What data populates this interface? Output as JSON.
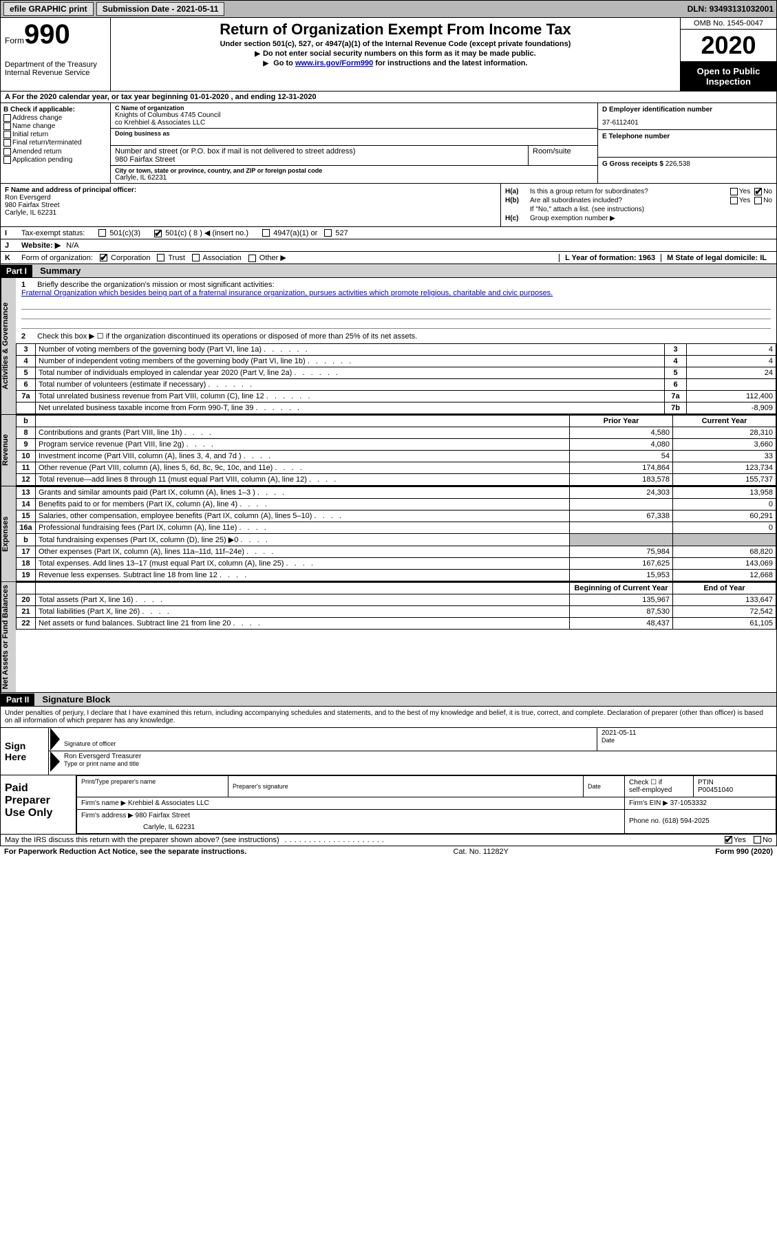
{
  "topbar": {
    "efile": "efile GRAPHIC print",
    "sub_label": "Submission Date - ",
    "sub_date": "2021-05-11",
    "dln_label": "DLN: ",
    "dln": "93493131032001"
  },
  "header": {
    "form_word": "Form",
    "form_num": "990",
    "dept1": "Department of the Treasury",
    "dept2": "Internal Revenue Service",
    "title": "Return of Organization Exempt From Income Tax",
    "sub1": "Under section 501(c), 527, or 4947(a)(1) of the Internal Revenue Code (except private foundations)",
    "sub2": "Do not enter social security numbers on this form as it may be made public.",
    "sub3_pre": "Go to ",
    "sub3_link": "www.irs.gov/Form990",
    "sub3_post": " for instructions and the latest information.",
    "omb": "OMB No. 1545-0047",
    "year": "2020",
    "inspect1": "Open to Public",
    "inspect2": "Inspection"
  },
  "lineA": "A For the 2020 calendar year, or tax year beginning 01-01-2020    , and ending 12-31-2020",
  "colB": {
    "header": "B Check if applicable:",
    "items": [
      "Address change",
      "Name change",
      "Initial return",
      "Final return/terminated",
      "Amended return",
      "Application pending"
    ]
  },
  "colC": {
    "name_lbl": "C Name of organization",
    "name1": "Knights of Columbus 4745 Council",
    "name2": "co Krehbiel & Associates LLC",
    "dba_lbl": "Doing business as",
    "addr_lbl": "Number and street (or P.O. box if mail is not delivered to street address)",
    "room_lbl": "Room/suite",
    "addr": "980 Fairfax Street",
    "city_lbl": "City or town, state or province, country, and ZIP or foreign postal code",
    "city": "Carlyle, IL  62231"
  },
  "colD": {
    "ein_lbl": "D Employer identification number",
    "ein": "37-6112401",
    "tel_lbl": "E Telephone number",
    "gross_lbl": "G Gross receipts $ ",
    "gross": "226,538"
  },
  "f": {
    "lbl": "F  Name and address of principal officer:",
    "name": "Ron Eversgerd",
    "addr": "980 Fairfax Street",
    "city": "Carlyle, IL  62231"
  },
  "h": {
    "a_lbl": "H(a)",
    "a_text": "Is this a group return for subordinates?",
    "b_lbl": "H(b)",
    "b_text": "Are all subordinates included?",
    "b_note": "If \"No,\" attach a list. (see instructions)",
    "c_lbl": "H(c)",
    "c_text": "Group exemption number ▶"
  },
  "rowI": {
    "lbl": "I",
    "text": "Tax-exempt status:",
    "o1": "501(c)(3)",
    "o2": "501(c) ( 8 ) ◀ (insert no.)",
    "o3": "4947(a)(1) or",
    "o4": "527"
  },
  "rowJ": {
    "lbl": "J",
    "text": "Website: ▶",
    "val": "N/A"
  },
  "rowK": {
    "lbl": "K",
    "text": "Form of organization:",
    "o1": "Corporation",
    "o2": "Trust",
    "o3": "Association",
    "o4": "Other ▶"
  },
  "rowLM": {
    "l": "L Year of formation: 1963",
    "m": "M State of legal domicile: IL"
  },
  "part1": {
    "hdr": "Part I",
    "title": "Summary"
  },
  "summary": {
    "l1_lbl": "1",
    "l1": "Briefly describe the organization's mission or most significant activities:",
    "l1_text": "Fraternal Organization which besides being part of a fraternal insurance organization, pursues activities which promote religious, charitable and civic purposes.",
    "l2_lbl": "2",
    "l2": "Check this box ▶ ☐  if the organization discontinued its operations or disposed of more than 25% of its net assets."
  },
  "gov_rows": [
    {
      "n": "3",
      "desc": "Number of voting members of the governing body (Part VI, line 1a)",
      "box": "3",
      "val": "4"
    },
    {
      "n": "4",
      "desc": "Number of independent voting members of the governing body (Part VI, line 1b)",
      "box": "4",
      "val": "4"
    },
    {
      "n": "5",
      "desc": "Total number of individuals employed in calendar year 2020 (Part V, line 2a)",
      "box": "5",
      "val": "24"
    },
    {
      "n": "6",
      "desc": "Total number of volunteers (estimate if necessary)",
      "box": "6",
      "val": ""
    },
    {
      "n": "7a",
      "desc": "Total unrelated business revenue from Part VIII, column (C), line 12",
      "box": "7a",
      "val": "112,400"
    },
    {
      "n": "",
      "desc": "Net unrelated business taxable income from Form 990-T, line 39",
      "box": "7b",
      "val": "-8,909"
    }
  ],
  "col_hdrs": {
    "b_hdr": "b",
    "prior": "Prior Year",
    "current": "Current Year"
  },
  "rev_rows": [
    {
      "n": "8",
      "desc": "Contributions and grants (Part VIII, line 1h)",
      "py": "4,580",
      "cy": "28,310"
    },
    {
      "n": "9",
      "desc": "Program service revenue (Part VIII, line 2g)",
      "py": "4,080",
      "cy": "3,660"
    },
    {
      "n": "10",
      "desc": "Investment income (Part VIII, column (A), lines 3, 4, and 7d )",
      "py": "54",
      "cy": "33"
    },
    {
      "n": "11",
      "desc": "Other revenue (Part VIII, column (A), lines 5, 6d, 8c, 9c, 10c, and 11e)",
      "py": "174,864",
      "cy": "123,734"
    },
    {
      "n": "12",
      "desc": "Total revenue—add lines 8 through 11 (must equal Part VIII, column (A), line 12)",
      "py": "183,578",
      "cy": "155,737"
    }
  ],
  "exp_rows": [
    {
      "n": "13",
      "desc": "Grants and similar amounts paid (Part IX, column (A), lines 1–3 )",
      "py": "24,303",
      "cy": "13,958"
    },
    {
      "n": "14",
      "desc": "Benefits paid to or for members (Part IX, column (A), line 4)",
      "py": "",
      "cy": "0"
    },
    {
      "n": "15",
      "desc": "Salaries, other compensation, employee benefits (Part IX, column (A), lines 5–10)",
      "py": "67,338",
      "cy": "60,291"
    },
    {
      "n": "16a",
      "desc": "Professional fundraising fees (Part IX, column (A), line 11e)",
      "py": "",
      "cy": "0"
    },
    {
      "n": "b",
      "desc": "Total fundraising expenses (Part IX, column (D), line 25) ▶0",
      "py": "SHADE",
      "cy": "SHADE"
    },
    {
      "n": "17",
      "desc": "Other expenses (Part IX, column (A), lines 11a–11d, 11f–24e)",
      "py": "75,984",
      "cy": "68,820"
    },
    {
      "n": "18",
      "desc": "Total expenses. Add lines 13–17 (must equal Part IX, column (A), line 25)",
      "py": "167,625",
      "cy": "143,069"
    },
    {
      "n": "19",
      "desc": "Revenue less expenses. Subtract line 18 from line 12",
      "py": "15,953",
      "cy": "12,668"
    }
  ],
  "na_hdrs": {
    "begin": "Beginning of Current Year",
    "end": "End of Year"
  },
  "na_rows": [
    {
      "n": "20",
      "desc": "Total assets (Part X, line 16)",
      "py": "135,967",
      "cy": "133,647"
    },
    {
      "n": "21",
      "desc": "Total liabilities (Part X, line 26)",
      "py": "87,530",
      "cy": "72,542"
    },
    {
      "n": "22",
      "desc": "Net assets or fund balances. Subtract line 21 from line 20",
      "py": "48,437",
      "cy": "61,105"
    }
  ],
  "vtabs": {
    "gov": "Activities & Governance",
    "rev": "Revenue",
    "exp": "Expenses",
    "na": "Net Assets or Fund Balances"
  },
  "part2": {
    "hdr": "Part II",
    "title": "Signature Block"
  },
  "sig_intro": "Under penalties of perjury, I declare that I have examined this return, including accompanying schedules and statements, and to the best of my knowledge and belief, it is true, correct, and complete. Declaration of preparer (other than officer) is based on all information of which preparer has any knowledge.",
  "sig": {
    "left": "Sign Here",
    "sig_lbl": "Signature of officer",
    "date_lbl": "Date",
    "date": "2021-05-11",
    "name": "Ron Eversgerd Treasurer",
    "name_lbl": "Type or print name and title"
  },
  "prep": {
    "left": "Paid Preparer Use Only",
    "r1c1": "Print/Type preparer's name",
    "r1c2": "Preparer's signature",
    "r1c3": "Date",
    "r1c4a": "Check ☐ if",
    "r1c4b": "self-employed",
    "r1c5a": "PTIN",
    "r1c5b": "P00451040",
    "r2a": "Firm's name   ▶ ",
    "r2b": "Krehbiel & Associates LLC",
    "r2c": "Firm's EIN ▶ 37-1053332",
    "r3a": "Firm's address ▶ ",
    "r3b": "980 Fairfax Street",
    "r3c": "Carlyle, IL  62231",
    "r3d": "Phone no. (618) 594-2025"
  },
  "footer": {
    "discuss": "May the IRS discuss this return with the preparer shown above? (see instructions)",
    "yes": "Yes",
    "no": "No",
    "pra": "For Paperwork Reduction Act Notice, see the separate instructions.",
    "cat": "Cat. No. 11282Y",
    "form": "Form 990 (2020)"
  }
}
